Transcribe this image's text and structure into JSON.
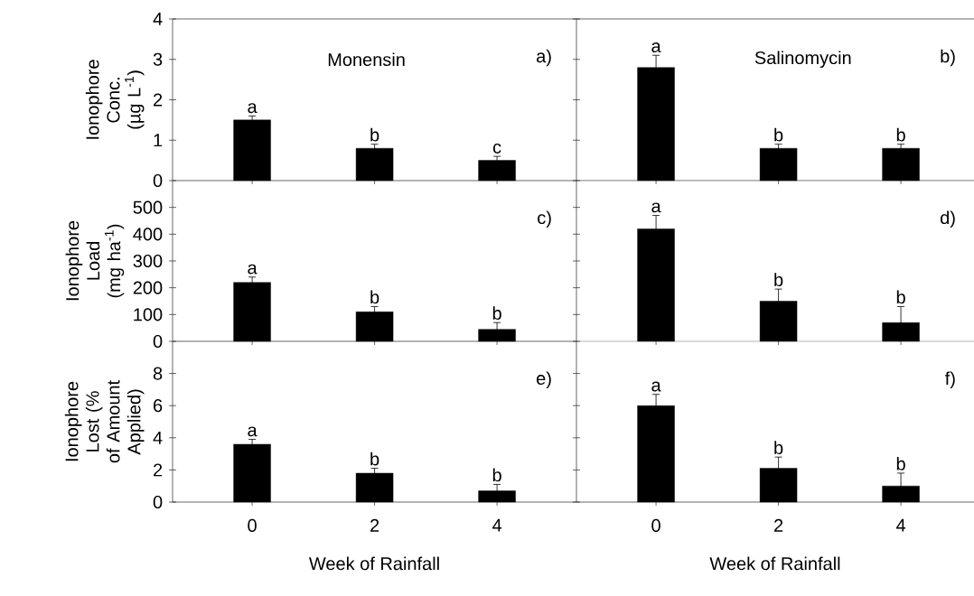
{
  "chart_data": [
    {
      "type": "bar",
      "title": "Monensin",
      "ylabel": "Ionophore Conc. (µg L$^{-1}$)",
      "categories": [
        "0",
        "2",
        "4"
      ],
      "values": [
        1.5,
        0.8,
        0.5
      ],
      "errors": [
        0.1,
        0.1,
        0.1
      ],
      "color": "#000000",
      "ylim": [
        0,
        4
      ],
      "yticks": [
        0,
        1,
        2,
        3,
        4
      ],
      "tick_labels": "y",
      "annotations": [
        "a)",
        {
          "text": "a",
          "x": "0",
          "y": 1.5
        },
        {
          "text": "b",
          "x": "2",
          "y": 0.8
        },
        {
          "text": "c",
          "x": "4",
          "y": 0.5
        }
      ]
    },
    {
      "type": "bar",
      "title": "Salinomycin",
      "categories": [
        "0",
        "2",
        "4"
      ],
      "values": [
        2.8,
        0.8,
        0.8
      ],
      "errors": [
        0.3,
        0.1,
        0.1
      ],
      "color": "#000000",
      "ylim": [
        0,
        4
      ],
      "yticks": [
        {
          "value": 0,
          "label": null
        },
        {
          "value": 1,
          "label": null
        },
        {
          "value": 2,
          "label": null
        },
        {
          "value": 3,
          "label": null
        },
        {
          "value": 4,
          "label": null
        }
      ],
      "tick_labels": false,
      "annotations": [
        "b)",
        {
          "text": "a",
          "x": "0",
          "y": 2.8
        },
        {
          "text": "b",
          "x": "2",
          "y": 0.8
        },
        {
          "text": "b",
          "x": "4",
          "y": 0.8
        }
      ]
    },
    {
      "type": "bar",
      "ylabel": "Ionophore Load (mg ha$^{-1}$)",
      "categories": [
        "0",
        "2",
        "4"
      ],
      "values": [
        220,
        110,
        45
      ],
      "errors": [
        20,
        20,
        25
      ],
      "color": "#000000",
      "ylim": [
        0,
        600
      ],
      "yticks": [
        0,
        100,
        200,
        300,
        400,
        500
      ],
      "tick_labels": "y",
      "annotations": [
        "c)",
        {
          "text": "a",
          "x": "0",
          "y": 220
        },
        {
          "text": "b",
          "x": "2",
          "y": 110
        },
        {
          "text": "b",
          "x": "4",
          "y": 45
        }
      ]
    },
    {
      "type": "bar",
      "categories": [
        "0",
        "2",
        "4"
      ],
      "values": [
        420,
        150,
        70
      ],
      "errors": [
        50,
        45,
        60
      ],
      "color": "#000000",
      "ylim": [
        0,
        600
      ],
      "yticks": [
        {
          "value": 0,
          "label": null
        },
        {
          "value": 100,
          "label": null
        },
        {
          "value": 200,
          "label": null
        },
        {
          "value": 300,
          "label": null
        },
        {
          "value": 400,
          "label": null
        },
        {
          "value": 500,
          "label": null
        }
      ],
      "tick_labels": false,
      "annotations": [
        "d)",
        {
          "text": "a",
          "x": "0",
          "y": 420
        },
        {
          "text": "b",
          "x": "2",
          "y": 150
        },
        {
          "text": "b",
          "x": "4",
          "y": 70
        }
      ]
    },
    {
      "type": "bar",
      "ylabel": "Ionophore Lost (% of Amount Applied)",
      "xlabel": "Week of Rainfall",
      "categories": [
        "0",
        "2",
        "4"
      ],
      "values": [
        3.6,
        1.8,
        0.7
      ],
      "errors": [
        0.3,
        0.3,
        0.4
      ],
      "color": "#000000",
      "ylim": [
        0,
        10
      ],
      "yticks": [
        0,
        2,
        4,
        6,
        8
      ],
      "annotations": [
        "e)",
        {
          "text": "a",
          "x": "0",
          "y": 3.6
        },
        {
          "text": "b",
          "x": "2",
          "y": 1.8
        },
        {
          "text": "b",
          "x": "4",
          "y": 0.7
        }
      ]
    },
    {
      "type": "bar",
      "xlabel": "Week of Rainfall",
      "categories": [
        "0",
        "2",
        "4"
      ],
      "values": [
        6.0,
        2.1,
        1.0
      ],
      "errors": [
        0.7,
        0.7,
        0.8
      ],
      "color": "#000000",
      "ylim": [
        0,
        10
      ],
      "yticks": [
        {
          "value": 0,
          "label": null
        },
        {
          "value": 2,
          "label": null
        },
        {
          "value": 4,
          "label": null
        },
        {
          "value": 6,
          "label": null
        },
        {
          "value": 8,
          "label": null
        }
      ],
      "tick_labels": "x",
      "annotations": [
        "f)",
        {
          "text": "a",
          "x": "0",
          "y": 6.0
        },
        {
          "text": "b",
          "x": "2",
          "y": 2.1
        },
        {
          "text": "b",
          "x": "4",
          "y": 1.0
        }
      ]
    }
  ]
}
